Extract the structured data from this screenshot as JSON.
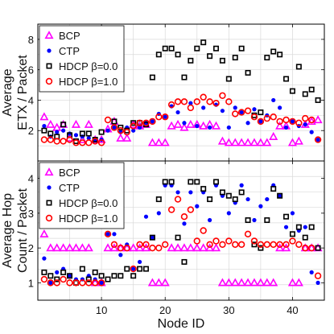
{
  "chart_data": [
    {
      "type": "scatter",
      "ylabel": "Average\nETX / Packet",
      "ylim": [
        0,
        9
      ],
      "yticks": [
        2,
        4,
        6,
        8
      ],
      "xlim": [
        0,
        45
      ],
      "grid": true,
      "legend": "top-left",
      "series": [
        {
          "name": "BCP",
          "marker": "triangle",
          "color": "#ff00ff",
          "x": [
            1,
            2,
            3,
            4,
            5,
            6,
            7,
            8,
            9,
            10,
            11,
            12,
            13,
            14,
            15,
            16,
            17,
            18,
            19,
            20,
            21,
            22,
            23,
            24,
            25,
            26,
            27,
            28,
            29,
            30,
            31,
            32,
            33,
            34,
            35,
            36,
            37,
            38,
            39,
            40,
            41,
            42,
            43,
            44
          ],
          "y": [
            2.9,
            2.4,
            2.2,
            2.4,
            1.5,
            2.4,
            1.4,
            2.4,
            1.4,
            1.4,
            2.1,
            2.6,
            1.5,
            1.5,
            2.4,
            2.3,
            2.4,
            1.2,
            1.2,
            1.2,
            2.3,
            2.4,
            2.2,
            2.4,
            2.4,
            2.3,
            2.4,
            2.3,
            1.3,
            1.2,
            1.2,
            1.2,
            1.2,
            1.2,
            1.2,
            1.2,
            1.6,
            2.3,
            2.3,
            1.2,
            1.3,
            2.4,
            2.6,
            2.7
          ]
        },
        {
          "name": "CTP",
          "marker": "circle-filled",
          "color": "#0000ff",
          "x": [
            1,
            2,
            3,
            4,
            5,
            6,
            7,
            8,
            9,
            10,
            11,
            12,
            13,
            14,
            15,
            16,
            17,
            18,
            19,
            20,
            21,
            22,
            23,
            24,
            25,
            26,
            27,
            28,
            29,
            30,
            31,
            32,
            33,
            34,
            35,
            36,
            37,
            38,
            39,
            40,
            41,
            42,
            43,
            44
          ],
          "y": [
            2.3,
            1.6,
            1.9,
            2.0,
            1.8,
            1.7,
            1.6,
            1.5,
            1.4,
            1.4,
            2.0,
            2.2,
            1.9,
            2.2,
            2.0,
            2.2,
            2.5,
            2.6,
            3.1,
            2.9,
            3.6,
            3.2,
            2.5,
            3.8,
            2.3,
            3.5,
            2.2,
            3.7,
            3.3,
            2.2,
            3.5,
            3.2,
            2.5,
            3.4,
            2.6,
            3.0,
            4.0,
            3.5,
            2.2,
            2.6,
            2.3,
            2.4,
            1.9,
            1.4
          ]
        },
        {
          "name": "HDCP β=0.0",
          "marker": "square",
          "color": "#000000",
          "x": [
            1,
            2,
            3,
            4,
            5,
            6,
            7,
            8,
            9,
            10,
            11,
            12,
            13,
            14,
            15,
            16,
            17,
            18,
            19,
            20,
            21,
            22,
            23,
            24,
            25,
            26,
            27,
            28,
            29,
            30,
            31,
            32,
            33,
            34,
            35,
            36,
            37,
            38,
            39,
            40,
            41,
            42,
            43,
            44
          ],
          "y": [
            2.0,
            1.8,
            1.6,
            2.4,
            1.7,
            1.3,
            1.8,
            1.8,
            1.4,
            1.9,
            5.2,
            2.6,
            2.2,
            2.0,
            2.5,
            2.5,
            2.4,
            5.5,
            7.0,
            7.4,
            7.4,
            7.0,
            5.5,
            6.6,
            7.4,
            7.8,
            6.9,
            7.4,
            6.6,
            5.4,
            6.8,
            7.4,
            5.8,
            3.0,
            3.2,
            6.8,
            7.2,
            7.0,
            5.4,
            4.6,
            6.2,
            4.4,
            4.7,
            4.0
          ]
        },
        {
          "name": "HDCP β=1.0",
          "marker": "circle-open",
          "color": "#ff0000",
          "x": [
            1,
            2,
            3,
            4,
            5,
            6,
            7,
            8,
            9,
            10,
            11,
            12,
            13,
            14,
            15,
            16,
            17,
            18,
            19,
            20,
            21,
            22,
            23,
            24,
            25,
            26,
            27,
            28,
            29,
            30,
            31,
            32,
            33,
            34,
            35,
            36,
            37,
            38,
            39,
            40,
            41,
            42,
            43,
            44
          ],
          "y": [
            1.4,
            1.4,
            1.3,
            1.3,
            1.4,
            1.2,
            1.2,
            1.2,
            1.3,
            1.2,
            2.7,
            2.2,
            2.0,
            1.9,
            2.3,
            2.5,
            2.5,
            2.6,
            2.9,
            2.9,
            3.7,
            3.9,
            3.9,
            3.5,
            3.9,
            4.2,
            3.9,
            3.8,
            4.3,
            3.9,
            3.1,
            3.2,
            3.3,
            2.9,
            2.6,
            2.8,
            2.9,
            2.6,
            2.7,
            2.6,
            2.5,
            2.8,
            2.7,
            1.4
          ]
        }
      ]
    },
    {
      "type": "scatter",
      "ylabel": "Average Hop\nCount / Packet",
      "xlabel": "Node ID",
      "ylim": [
        0.5,
        4.5
      ],
      "yticks": [
        1,
        2,
        3,
        4
      ],
      "xlim": [
        0,
        45
      ],
      "xticks": [
        10,
        20,
        30,
        40
      ],
      "grid": true,
      "legend": "top-left",
      "series": [
        {
          "name": "BCP",
          "marker": "triangle",
          "color": "#ff00ff",
          "x": [
            1,
            2,
            3,
            4,
            5,
            6,
            7,
            8,
            9,
            10,
            11,
            12,
            13,
            14,
            15,
            16,
            17,
            18,
            19,
            20,
            21,
            22,
            23,
            24,
            25,
            26,
            27,
            28,
            29,
            30,
            31,
            32,
            33,
            34,
            35,
            36,
            37,
            38,
            39,
            40,
            41,
            42,
            43,
            44
          ],
          "y": [
            2.4,
            2.0,
            2.0,
            2.0,
            2.0,
            2.0,
            2.0,
            2.0,
            1.0,
            1.0,
            2.0,
            2.0,
            2.0,
            2.0,
            2.0,
            2.0,
            2.0,
            1.0,
            1.0,
            1.0,
            2.0,
            2.0,
            2.0,
            2.0,
            2.0,
            2.0,
            2.0,
            2.0,
            1.0,
            1.0,
            1.0,
            1.0,
            1.0,
            1.0,
            1.0,
            1.0,
            1.0,
            2.0,
            2.0,
            1.0,
            1.0,
            2.0,
            2.0,
            2.0
          ]
        },
        {
          "name": "CTP",
          "marker": "circle-filled",
          "color": "#0000ff",
          "x": [
            1,
            2,
            3,
            4,
            5,
            6,
            7,
            8,
            9,
            10,
            11,
            12,
            13,
            14,
            15,
            16,
            17,
            18,
            19,
            20,
            21,
            22,
            23,
            24,
            25,
            26,
            27,
            28,
            29,
            30,
            31,
            32,
            33,
            34,
            35,
            36,
            37,
            38,
            39,
            40,
            41,
            42,
            43,
            44
          ],
          "y": [
            1.7,
            1.0,
            1.3,
            1.4,
            1.2,
            1.1,
            1.1,
            1.2,
            1.1,
            1.0,
            2.4,
            2.4,
            1.8,
            2.1,
            1.4,
            1.6,
            2.9,
            2.3,
            3.0,
            3.8,
            3.8,
            3.6,
            2.7,
            3.6,
            3.2,
            3.6,
            2.8,
            3.8,
            3.5,
            3.0,
            3.3,
            3.8,
            3.4,
            2.8,
            3.2,
            3.4,
            3.8,
            3.5,
            2.6,
            3.0,
            2.5,
            2.6,
            1.3,
            1.0
          ]
        },
        {
          "name": "HDCP β=0.0",
          "marker": "square",
          "color": "#000000",
          "x": [
            1,
            2,
            3,
            4,
            5,
            6,
            7,
            8,
            9,
            10,
            11,
            12,
            13,
            14,
            15,
            16,
            17,
            18,
            19,
            20,
            21,
            22,
            23,
            24,
            25,
            26,
            27,
            28,
            29,
            30,
            31,
            32,
            33,
            34,
            35,
            36,
            37,
            38,
            39,
            40,
            41,
            42,
            43,
            44
          ],
          "y": [
            1.3,
            1.2,
            1.1,
            1.3,
            1.2,
            1.0,
            1.4,
            1.1,
            1.3,
            1.2,
            1.1,
            1.2,
            1.2,
            1.4,
            1.2,
            1.4,
            1.4,
            2.3,
            3.4,
            3.9,
            3.9,
            2.3,
            1.6,
            3.9,
            3.9,
            3.7,
            3.4,
            3.9,
            3.6,
            3.5,
            3.4,
            3.6,
            2.8,
            2.1,
            2.0,
            2.8,
            3.7,
            3.5,
            2.9,
            2.4,
            2.6,
            2.3,
            2.6,
            2.0
          ]
        },
        {
          "name": "HDCP β=1.0",
          "marker": "circle-open",
          "color": "#ff0000",
          "x": [
            1,
            2,
            3,
            4,
            5,
            6,
            7,
            8,
            9,
            10,
            11,
            12,
            13,
            14,
            15,
            16,
            17,
            18,
            19,
            20,
            21,
            22,
            23,
            24,
            25,
            26,
            27,
            28,
            29,
            30,
            31,
            32,
            33,
            34,
            35,
            36,
            37,
            38,
            39,
            40,
            41,
            42,
            43,
            44
          ],
          "y": [
            1.1,
            1.0,
            1.0,
            1.1,
            1.0,
            1.0,
            1.0,
            1.0,
            1.0,
            1.0,
            2.4,
            2.1,
            2.0,
            2.0,
            1.4,
            2.1,
            2.1,
            2.0,
            2.0,
            2.1,
            3.1,
            3.4,
            2.9,
            3.1,
            2.2,
            2.5,
            2.1,
            2.2,
            2.1,
            2.2,
            2.1,
            2.1,
            2.4,
            2.2,
            2.1,
            2.1,
            2.1,
            2.1,
            2.1,
            2.2,
            2.1,
            2.0,
            2.0,
            1.2
          ]
        }
      ]
    }
  ]
}
